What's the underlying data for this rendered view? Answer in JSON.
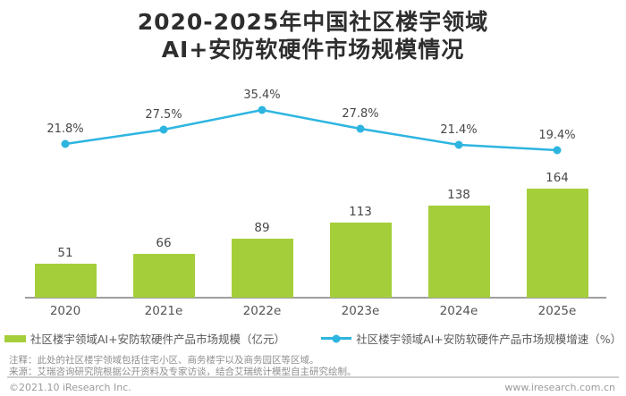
{
  "title": {
    "line1": "2020-2025年中国社区楼宇领域",
    "line2": "AI+安防软硬件市场规模情况"
  },
  "chart_data": {
    "type": "bar",
    "categories": [
      "2020",
      "2021e",
      "2022e",
      "2023e",
      "2024e",
      "2025e"
    ],
    "series": [
      {
        "name": "社区楼宇领域AI+安防软硬件产品市场规模（亿元）",
        "type": "bar",
        "values": [
          51,
          66,
          89,
          113,
          138,
          164
        ],
        "color": "#a5ce3b"
      },
      {
        "name": "社区楼宇领域AI+安防软硬件产品市场规模增速（%）",
        "type": "line",
        "values": [
          21.8,
          27.5,
          35.4,
          27.8,
          21.4,
          19.4
        ],
        "labels": [
          "21.8%",
          "27.5%",
          "35.4%",
          "27.8%",
          "21.4%",
          "19.4%"
        ],
        "color": "#2db5e0"
      }
    ],
    "xlabel": "",
    "ylabel": "",
    "grid": false,
    "legend_position": "bottom",
    "axis_color": "#9e9e9e"
  },
  "notes": {
    "annotation": "注释：此处的社区楼宇领域包括住宅小区、商务楼宇以及商务园区等区域。",
    "source": "来源：艾瑞咨询研究院根据公开资料及专家访谈，结合艾瑞统计模型自主研究绘制。"
  },
  "footer": {
    "copyright": "©2021.10 iResearch Inc.",
    "website": "www.iresearch.com.cn"
  }
}
